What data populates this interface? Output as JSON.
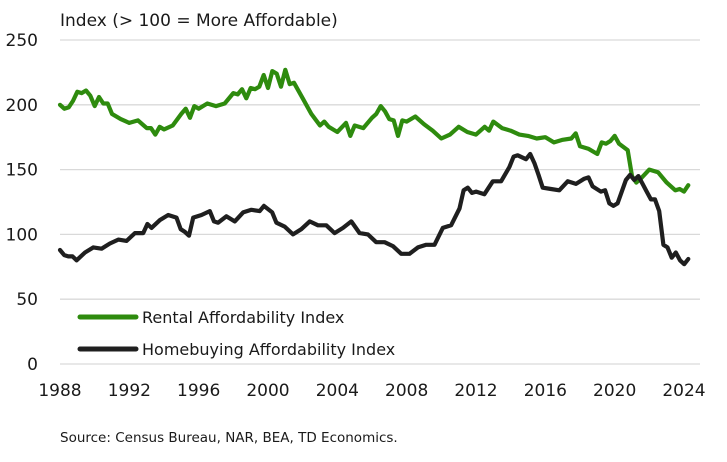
{
  "chart_data": {
    "type": "line",
    "title": "Index (> 100 = More Affordable)",
    "xlabel": "",
    "ylabel": "Index (> 100 = More Affordable)",
    "xlim": [
      1988,
      2024
    ],
    "ylim": [
      0,
      250
    ],
    "x_ticks": [
      "1988",
      "1992",
      "1996",
      "2000",
      "2004",
      "2008",
      "2012",
      "2016",
      "2020",
      "2024"
    ],
    "y_ticks": [
      "0",
      "50",
      "100",
      "150",
      "200",
      "250"
    ],
    "grid": "horizontal",
    "legend_position": "bottom-left",
    "series": [
      {
        "name": "Rental Affordability Index",
        "color": "#2e8b0e",
        "points": [
          [
            1988.0,
            200
          ],
          [
            1988.25,
            197
          ],
          [
            1988.5,
            198
          ],
          [
            1988.75,
            203
          ],
          [
            1989.0,
            210
          ],
          [
            1989.25,
            209
          ],
          [
            1989.5,
            211
          ],
          [
            1989.75,
            207
          ],
          [
            1990.0,
            199
          ],
          [
            1990.25,
            206
          ],
          [
            1990.5,
            201
          ],
          [
            1990.75,
            201
          ],
          [
            1991.0,
            193
          ],
          [
            1991.5,
            189
          ],
          [
            1992.0,
            186
          ],
          [
            1992.5,
            188
          ],
          [
            1993.0,
            182
          ],
          [
            1993.25,
            182
          ],
          [
            1993.5,
            177
          ],
          [
            1993.75,
            183
          ],
          [
            1994.0,
            181
          ],
          [
            1994.5,
            184
          ],
          [
            1995.0,
            193
          ],
          [
            1995.25,
            197
          ],
          [
            1995.5,
            190
          ],
          [
            1995.75,
            199
          ],
          [
            1996.0,
            197
          ],
          [
            1996.5,
            201
          ],
          [
            1997.0,
            199
          ],
          [
            1997.5,
            201
          ],
          [
            1998.0,
            209
          ],
          [
            1998.25,
            208
          ],
          [
            1998.5,
            212
          ],
          [
            1998.75,
            205
          ],
          [
            1999.0,
            213
          ],
          [
            1999.25,
            212
          ],
          [
            1999.5,
            214
          ],
          [
            1999.75,
            223
          ],
          [
            2000.0,
            213
          ],
          [
            2000.25,
            226
          ],
          [
            2000.5,
            224
          ],
          [
            2000.75,
            214
          ],
          [
            2001.0,
            227
          ],
          [
            2001.25,
            216
          ],
          [
            2001.5,
            217
          ],
          [
            2002.0,
            205
          ],
          [
            2002.5,
            193
          ],
          [
            2003.0,
            184
          ],
          [
            2003.25,
            187
          ],
          [
            2003.5,
            183
          ],
          [
            2004.0,
            179
          ],
          [
            2004.5,
            186
          ],
          [
            2004.75,
            176
          ],
          [
            2005.0,
            184
          ],
          [
            2005.5,
            182
          ],
          [
            2006.0,
            190
          ],
          [
            2006.25,
            193
          ],
          [
            2006.5,
            199
          ],
          [
            2006.75,
            195
          ],
          [
            2007.0,
            189
          ],
          [
            2007.25,
            188
          ],
          [
            2007.5,
            176
          ],
          [
            2007.75,
            188
          ],
          [
            2008.0,
            187
          ],
          [
            2008.5,
            191
          ],
          [
            2009.0,
            185
          ],
          [
            2009.5,
            180
          ],
          [
            2010.0,
            174
          ],
          [
            2010.5,
            177
          ],
          [
            2011.0,
            183
          ],
          [
            2011.5,
            179
          ],
          [
            2012.0,
            177
          ],
          [
            2012.5,
            183
          ],
          [
            2012.75,
            180
          ],
          [
            2013.0,
            187
          ],
          [
            2013.5,
            182
          ],
          [
            2014.0,
            180
          ],
          [
            2014.5,
            177
          ],
          [
            2015.0,
            176
          ],
          [
            2015.5,
            174
          ],
          [
            2016.0,
            175
          ],
          [
            2016.5,
            171
          ],
          [
            2017.0,
            173
          ],
          [
            2017.5,
            174
          ],
          [
            2017.75,
            178
          ],
          [
            2018.0,
            168
          ],
          [
            2018.5,
            166
          ],
          [
            2019.0,
            162
          ],
          [
            2019.25,
            171
          ],
          [
            2019.5,
            170
          ],
          [
            2019.75,
            172
          ],
          [
            2020.0,
            176
          ],
          [
            2020.25,
            170
          ],
          [
            2020.75,
            165
          ],
          [
            2021.0,
            145
          ],
          [
            2021.25,
            140
          ],
          [
            2021.5,
            143
          ],
          [
            2022.0,
            150
          ],
          [
            2022.5,
            148
          ],
          [
            2023.0,
            140
          ],
          [
            2023.5,
            134
          ],
          [
            2023.75,
            135
          ],
          [
            2024.0,
            133
          ],
          [
            2024.25,
            138
          ]
        ]
      },
      {
        "name": "Homebuying Affordability Index",
        "color": "#1f1f1f",
        "points": [
          [
            1988.0,
            88
          ],
          [
            1988.25,
            84
          ],
          [
            1988.5,
            83
          ],
          [
            1988.75,
            83
          ],
          [
            1989.0,
            80
          ],
          [
            1989.5,
            86
          ],
          [
            1990.0,
            90
          ],
          [
            1990.5,
            89
          ],
          [
            1991.0,
            93
          ],
          [
            1991.5,
            96
          ],
          [
            1992.0,
            95
          ],
          [
            1992.5,
            101
          ],
          [
            1993.0,
            101
          ],
          [
            1993.25,
            108
          ],
          [
            1993.5,
            105
          ],
          [
            1994.0,
            111
          ],
          [
            1994.5,
            115
          ],
          [
            1995.0,
            113
          ],
          [
            1995.25,
            104
          ],
          [
            1995.5,
            102
          ],
          [
            1995.75,
            99
          ],
          [
            1996.0,
            113
          ],
          [
            1996.5,
            115
          ],
          [
            1997.0,
            118
          ],
          [
            1997.25,
            110
          ],
          [
            1997.5,
            109
          ],
          [
            1998.0,
            114
          ],
          [
            1998.5,
            110
          ],
          [
            1999.0,
            117
          ],
          [
            1999.5,
            119
          ],
          [
            2000.0,
            118
          ],
          [
            2000.25,
            122
          ],
          [
            2000.75,
            117
          ],
          [
            2001.0,
            109
          ],
          [
            2001.5,
            106
          ],
          [
            2002.0,
            100
          ],
          [
            2002.5,
            104
          ],
          [
            2003.0,
            110
          ],
          [
            2003.5,
            107
          ],
          [
            2004.0,
            107
          ],
          [
            2004.5,
            101
          ],
          [
            2005.0,
            105
          ],
          [
            2005.5,
            110
          ],
          [
            2006.0,
            101
          ],
          [
            2006.5,
            100
          ],
          [
            2007.0,
            94
          ],
          [
            2007.5,
            94
          ],
          [
            2008.0,
            91
          ],
          [
            2008.5,
            85
          ],
          [
            2009.0,
            85
          ],
          [
            2009.5,
            90
          ],
          [
            2010.0,
            92
          ],
          [
            2010.5,
            92
          ],
          [
            2011.0,
            105
          ],
          [
            2011.5,
            107
          ],
          [
            2012.0,
            120
          ],
          [
            2012.25,
            134
          ],
          [
            2012.5,
            136
          ],
          [
            2012.75,
            132
          ],
          [
            2013.0,
            133
          ],
          [
            2013.5,
            131
          ],
          [
            2014.0,
            141
          ],
          [
            2014.5,
            141
          ],
          [
            2015.0,
            152
          ],
          [
            2015.25,
            160
          ],
          [
            2015.5,
            161
          ],
          [
            2016.0,
            158
          ],
          [
            2016.25,
            162
          ],
          [
            2016.5,
            155
          ],
          [
            2016.75,
            146
          ],
          [
            2017.0,
            136
          ],
          [
            2017.5,
            135
          ],
          [
            2018.0,
            134
          ],
          [
            2018.5,
            141
          ],
          [
            2019.0,
            139
          ],
          [
            2019.5,
            143
          ],
          [
            2019.75,
            144
          ],
          [
            2020.0,
            137
          ],
          [
            2020.5,
            133
          ],
          [
            2020.75,
            134
          ],
          [
            2021.0,
            124
          ],
          [
            2021.25,
            122
          ],
          [
            2021.5,
            124
          ],
          [
            2022.0,
            142
          ],
          [
            2022.25,
            146
          ],
          [
            2022.5,
            142
          ],
          [
            2022.75,
            145
          ],
          [
            2023.0,
            139
          ],
          [
            2023.25,
            133
          ],
          [
            2023.5,
            127
          ],
          [
            2023.75,
            127
          ],
          [
            2024.0,
            118
          ],
          [
            2024.25,
            92
          ],
          [
            2024.5,
            90
          ],
          [
            2024.75,
            82
          ],
          [
            2025.0,
            86
          ],
          [
            2025.25,
            80
          ],
          [
            2025.5,
            77
          ],
          [
            2025.75,
            81
          ]
        ]
      }
    ],
    "source": "Source: Census Bureau, NAR, BEA, TD Economics."
  }
}
